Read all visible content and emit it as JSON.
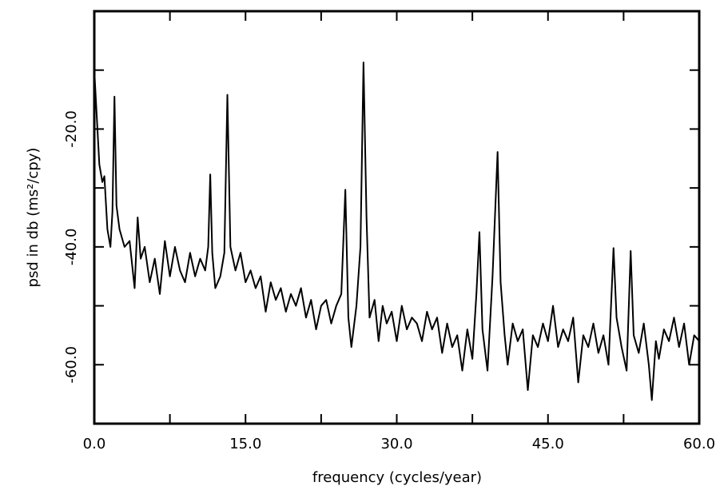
{
  "chart_data": {
    "type": "line",
    "xlabel": "frequency (cycles/year)",
    "ylabel": "psd in db (ms²/cpy)",
    "color": "#000000",
    "xlim": [
      0,
      60
    ],
    "ylim": [
      -70,
      0
    ],
    "xticks": [
      {
        "value": 0,
        "label": "0.0"
      },
      {
        "value": 15,
        "label": "15.0"
      },
      {
        "value": 30,
        "label": "30.0"
      },
      {
        "value": 45,
        "label": "45.0"
      },
      {
        "value": 60,
        "label": "60.0"
      }
    ],
    "xminor_ticks": [
      7.5,
      22.5,
      37.5,
      52.5
    ],
    "yticks": [
      {
        "value": -20,
        "label": "-20.0"
      },
      {
        "value": -40,
        "label": "-40.0"
      },
      {
        "value": -60,
        "label": "-60.0"
      }
    ],
    "yminor_ticks": [
      -10,
      -30,
      -50
    ],
    "x": [
      0,
      0.25,
      0.5,
      0.8,
      1.0,
      1.3,
      1.6,
      1.8,
      2.0,
      2.2,
      2.5,
      3.0,
      3.5,
      4.0,
      4.3,
      4.6,
      5.0,
      5.5,
      6.0,
      6.5,
      7.0,
      7.5,
      8.0,
      8.5,
      9.0,
      9.5,
      10.0,
      10.5,
      11.0,
      11.3,
      11.5,
      11.7,
      12.0,
      12.5,
      12.9,
      13.2,
      13.5,
      14.0,
      14.5,
      15.0,
      15.5,
      16.0,
      16.5,
      17.0,
      17.5,
      18.0,
      18.5,
      19.0,
      19.5,
      20.0,
      20.5,
      21.0,
      21.5,
      22.0,
      22.5,
      23.0,
      23.5,
      24.0,
      24.5,
      24.9,
      25.2,
      25.5,
      26.0,
      26.4,
      26.7,
      27.0,
      27.3,
      27.8,
      28.2,
      28.6,
      29.0,
      29.5,
      30.0,
      30.5,
      31.0,
      31.5,
      32.0,
      32.5,
      33.0,
      33.5,
      34.0,
      34.5,
      35.0,
      35.5,
      36.0,
      36.5,
      37.0,
      37.5,
      37.9,
      38.2,
      38.5,
      39.0,
      39.5,
      40.0,
      40.3,
      40.7,
      41.0,
      41.5,
      42.0,
      42.5,
      43.0,
      43.5,
      44.0,
      44.5,
      45.0,
      45.5,
      46.0,
      46.5,
      47.0,
      47.5,
      48.0,
      48.5,
      49.0,
      49.5,
      50.0,
      50.5,
      51.0,
      51.5,
      51.8,
      52.3,
      52.8,
      53.2,
      53.5,
      54.0,
      54.5,
      55.0,
      55.3,
      55.7,
      56.0,
      56.5,
      57.0,
      57.5,
      58.0,
      58.5,
      59.0,
      59.5,
      60.0
    ],
    "values": [
      -10,
      -18,
      -26,
      -29,
      -28,
      -37,
      -40,
      -34,
      -14.5,
      -33,
      -37,
      -40,
      -39,
      -47,
      -35,
      -42,
      -40,
      -46,
      -42,
      -48,
      -39,
      -45,
      -40,
      -44,
      -46,
      -41,
      -45,
      -42,
      -44,
      -40,
      -27.7,
      -41,
      -47,
      -45,
      -41,
      -14.2,
      -40,
      -44,
      -41,
      -46,
      -44,
      -47,
      -45,
      -51,
      -46,
      -49,
      -47,
      -51,
      -48,
      -50,
      -47,
      -52,
      -49,
      -54,
      -50,
      -49,
      -53,
      -50,
      -48,
      -30.3,
      -52,
      -57,
      -50,
      -40,
      -8.7,
      -35,
      -52,
      -49,
      -56,
      -50,
      -53,
      -51,
      -56,
      -50,
      -54,
      -52,
      -53,
      -56,
      -51,
      -54,
      -52,
      -58,
      -53,
      -57,
      -55,
      -61,
      -54,
      -59,
      -48,
      -37.5,
      -54,
      -61,
      -45,
      -23.9,
      -46,
      -55,
      -60,
      -53,
      -56,
      -54,
      -64.3,
      -55,
      -57,
      -53,
      -56,
      -50,
      -57,
      -54,
      -56,
      -52,
      -63,
      -55,
      -57,
      -53,
      -58,
      -55,
      -60,
      -40.2,
      -52,
      -57,
      -61,
      -40.7,
      -55,
      -58,
      -53,
      -60,
      -66,
      -56,
      -59,
      -54,
      -56,
      -52,
      -57,
      -53,
      -60,
      -55,
      -56
    ]
  }
}
